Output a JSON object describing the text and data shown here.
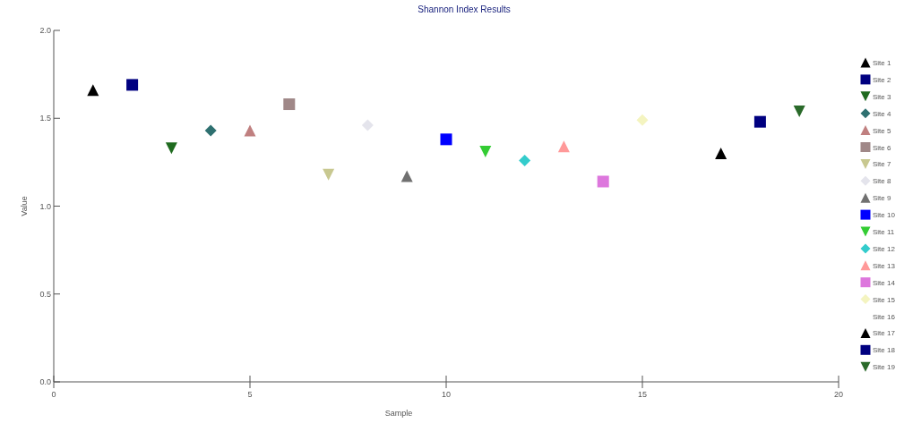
{
  "chart_data": {
    "type": "scatter",
    "title": "Shannon Index Results",
    "xlabel": "Sample",
    "ylabel": "Value",
    "xlim": [
      0,
      20
    ],
    "xticks": [
      0,
      5,
      10,
      15,
      20
    ],
    "ylim": [
      0,
      2
    ],
    "yticks": [
      {
        "value": 0,
        "label": "0.0"
      },
      {
        "value": 0.5,
        "label": "0.5"
      },
      {
        "value": 1,
        "label": "1.0"
      },
      {
        "value": 1.5,
        "label": "1.5"
      },
      {
        "value": 2,
        "label": "2.0"
      }
    ],
    "grid": false,
    "legend": "right",
    "series": [
      {
        "name": "Site 1",
        "color": "#000000",
        "marker": "triangle",
        "x": [
          1
        ],
        "values": [
          1.66
        ]
      },
      {
        "name": "Site 2",
        "color": "#000080",
        "marker": "square",
        "x": [
          2
        ],
        "values": [
          1.69
        ]
      },
      {
        "name": "Site 3",
        "color": "#1f6b1f",
        "marker": "triangle-down",
        "x": [
          3
        ],
        "values": [
          1.33
        ]
      },
      {
        "name": "Site 4",
        "color": "#2e7070",
        "marker": "diamond",
        "x": [
          4
        ],
        "values": [
          1.43
        ]
      },
      {
        "name": "Site 5",
        "color": "#c08080",
        "marker": "triangle",
        "x": [
          5
        ],
        "values": [
          1.43
        ]
      },
      {
        "name": "Site 6",
        "color": "#a08888",
        "marker": "square",
        "x": [
          6
        ],
        "values": [
          1.58
        ]
      },
      {
        "name": "Site 7",
        "color": "#c8c890",
        "marker": "triangle-down",
        "x": [
          7
        ],
        "values": [
          1.18
        ]
      },
      {
        "name": "Site 8",
        "color": "#e4e4ec",
        "marker": "diamond",
        "x": [
          8
        ],
        "values": [
          1.46
        ]
      },
      {
        "name": "Site 9",
        "color": "#707070",
        "marker": "triangle",
        "x": [
          9
        ],
        "values": [
          1.17
        ]
      },
      {
        "name": "Site 10",
        "color": "#0000ff",
        "marker": "square",
        "x": [
          10
        ],
        "values": [
          1.38
        ]
      },
      {
        "name": "Site 11",
        "color": "#33cc33",
        "marker": "triangle-down",
        "x": [
          11
        ],
        "values": [
          1.31
        ]
      },
      {
        "name": "Site 12",
        "color": "#33cccc",
        "marker": "diamond",
        "x": [
          12
        ],
        "values": [
          1.26
        ]
      },
      {
        "name": "Site 13",
        "color": "#ff9999",
        "marker": "triangle",
        "x": [
          13
        ],
        "values": [
          1.34
        ]
      },
      {
        "name": "Site 14",
        "color": "#dd77dd",
        "marker": "square",
        "x": [
          14
        ],
        "values": [
          1.14
        ]
      },
      {
        "name": "Site 15",
        "color": "#f4f4c0",
        "marker": "diamond",
        "x": [
          15
        ],
        "values": [
          1.49
        ]
      },
      {
        "name": "Site 16"
      },
      {
        "name": "Site 17",
        "color": "#000000",
        "marker": "triangle",
        "x": [
          17
        ],
        "values": [
          1.3
        ]
      },
      {
        "name": "Site 18",
        "color": "#000080",
        "marker": "square",
        "x": [
          18
        ],
        "values": [
          1.48
        ]
      },
      {
        "name": "Site 19",
        "color": "#2a6a2a",
        "marker": "triangle-down",
        "x": [
          19
        ],
        "values": [
          1.54
        ]
      }
    ]
  }
}
